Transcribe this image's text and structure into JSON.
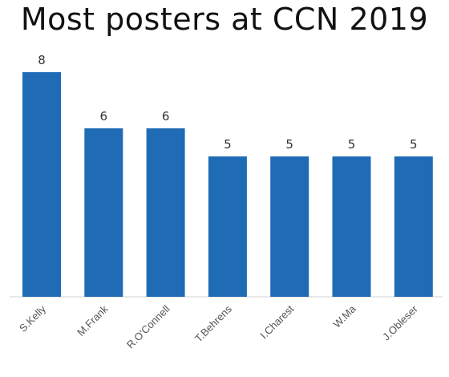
{
  "chart_data": {
    "type": "bar",
    "title": "Most posters at CCN 2019",
    "categories": [
      "S.Kelly",
      "M.Frank",
      "R.O'Connell",
      "T.Behrens",
      "I.Charest",
      "W.Ma",
      "J.Obleser"
    ],
    "values": [
      8,
      6,
      6,
      5,
      5,
      5,
      5
    ],
    "xlabel": "",
    "ylabel": "",
    "ylim": [
      0,
      8
    ],
    "grid": false,
    "legend": "none",
    "bar_color": "#1f6bb5",
    "data_labels": true
  }
}
